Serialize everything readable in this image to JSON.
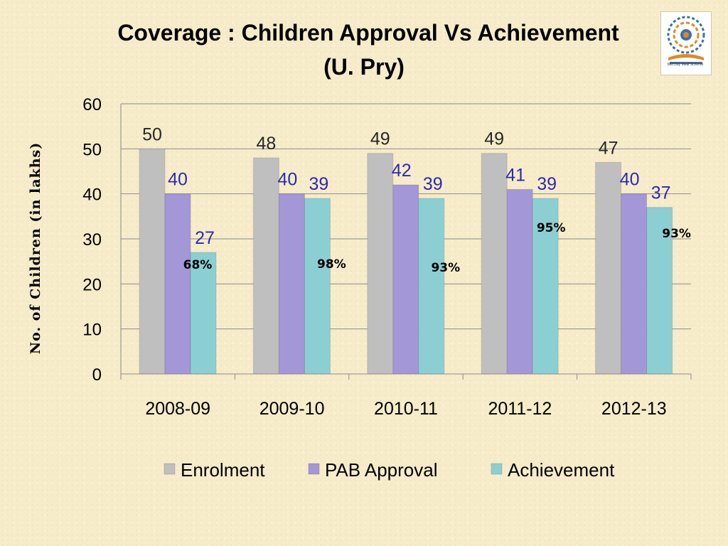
{
  "slide": {
    "title_line1": "Coverage : Children Approval Vs Achievement",
    "title_line2": "(U. Pry)",
    "logo_caption": "Mid Day Meal Scheme"
  },
  "chart_data": {
    "type": "bar",
    "ylabel": "No. of Children (in lakhs)",
    "ylim": [
      0,
      60
    ],
    "yticks": [
      0,
      10,
      20,
      30,
      40,
      50,
      60
    ],
    "grid": true,
    "legend_position": "bottom",
    "categories": [
      "2008-09",
      "2009-10",
      "2010-11",
      "2011-12",
      "2012-13"
    ],
    "series": [
      {
        "name": "Enrolment",
        "values": [
          50,
          48,
          49,
          49,
          47
        ],
        "color": "#bfbfbf",
        "label_color": "#262626"
      },
      {
        "name": "PAB Approval",
        "values": [
          40,
          40,
          42,
          41,
          40
        ],
        "color": "#a397d8",
        "label_color": "#2a2ab0"
      },
      {
        "name": "Achievement",
        "values": [
          27,
          39,
          39,
          39,
          37
        ],
        "color": "#8ccfd3",
        "label_color": "#2a2ab0"
      }
    ],
    "annotations": [
      "68%",
      "98%",
      "93%",
      "95%",
      "93%"
    ]
  }
}
